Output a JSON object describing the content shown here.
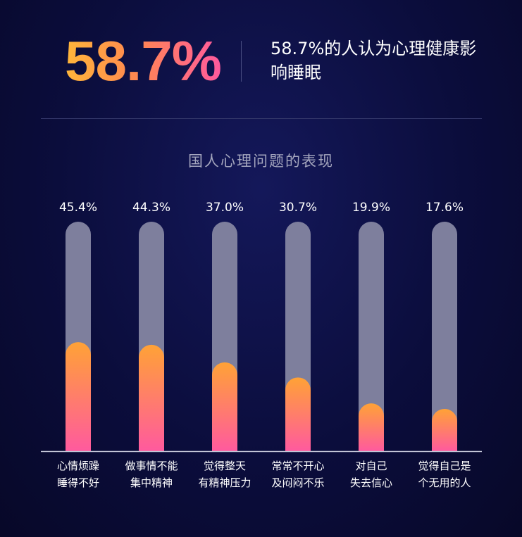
{
  "headline": {
    "value": "58.7%",
    "text": "58.7%的人认为心理健康影响睡眠"
  },
  "chart_data": {
    "type": "bar",
    "title": "国人心理问题的表现",
    "categories": [
      [
        "心情烦躁",
        "睡得不好"
      ],
      [
        "做事情不能",
        "集中精神"
      ],
      [
        "觉得整天",
        "有精神压力"
      ],
      [
        "常常不开心",
        "及闷闷不乐"
      ],
      [
        "对自己",
        "失去信心"
      ],
      [
        "觉得自己是",
        "个无用的人"
      ]
    ],
    "values": [
      45.4,
      44.3,
      37.0,
      30.7,
      19.9,
      17.6
    ],
    "value_labels": [
      "45.4%",
      "44.3%",
      "37.0%",
      "30.7%",
      "19.9%",
      "17.6%"
    ],
    "ylim": [
      0,
      100
    ],
    "colors": {
      "track": "#7e7f9d",
      "fill_top": "#ffa236",
      "fill_bottom": "#ff5a9e",
      "baseline": "#c4c6d8",
      "label": "#ffffff"
    }
  }
}
